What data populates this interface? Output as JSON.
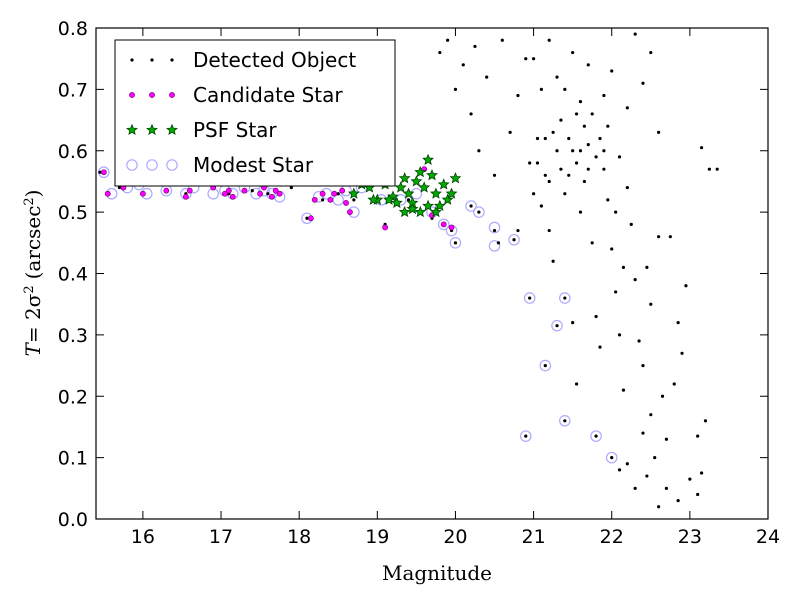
{
  "chart_data": {
    "type": "scatter",
    "xlabel": "Magnitude",
    "ylabel_T": "T",
    "ylabel_eq": "= 2σ",
    "ylabel_sup": "2",
    "ylabel_unit": "(arcsec",
    "ylabel_unit_sup": "2",
    "ylabel_close": ")",
    "xlim": [
      15.4,
      24
    ],
    "ylim": [
      0.0,
      0.8
    ],
    "xticks": [
      "16",
      "17",
      "18",
      "19",
      "20",
      "21",
      "22",
      "23",
      "24"
    ],
    "yticks": [
      "0.0",
      "0.1",
      "0.2",
      "0.3",
      "0.4",
      "0.5",
      "0.6",
      "0.7",
      "0.8"
    ],
    "legend_position": "top-left",
    "grid": false,
    "series": [
      {
        "name": "Detected Object",
        "marker": "dot",
        "color": "#000000",
        "points": [
          [
            15.45,
            0.565
          ],
          [
            15.55,
            0.53
          ],
          [
            15.7,
            0.54
          ],
          [
            15.9,
            0.545
          ],
          [
            16.0,
            0.53
          ],
          [
            16.3,
            0.535
          ],
          [
            16.55,
            0.53
          ],
          [
            16.9,
            0.54
          ],
          [
            17.1,
            0.53
          ],
          [
            17.4,
            0.535
          ],
          [
            17.6,
            0.53
          ],
          [
            17.9,
            0.54
          ],
          [
            18.1,
            0.49
          ],
          [
            18.3,
            0.52
          ],
          [
            18.5,
            0.53
          ],
          [
            18.7,
            0.52
          ],
          [
            18.9,
            0.54
          ],
          [
            19.1,
            0.48
          ],
          [
            19.4,
            0.52
          ],
          [
            19.7,
            0.49
          ],
          [
            19.85,
            0.48
          ],
          [
            19.95,
            0.47
          ],
          [
            20.0,
            0.45
          ],
          [
            20.2,
            0.51
          ],
          [
            20.3,
            0.5
          ],
          [
            20.5,
            0.47
          ],
          [
            20.55,
            0.45
          ],
          [
            20.75,
            0.455
          ],
          [
            20.8,
            0.47
          ],
          [
            20.95,
            0.36
          ],
          [
            20.9,
            0.135
          ],
          [
            21.15,
            0.25
          ],
          [
            21.3,
            0.315
          ],
          [
            21.4,
            0.36
          ],
          [
            21.4,
            0.16
          ],
          [
            21.8,
            0.135
          ],
          [
            22.0,
            0.1
          ],
          [
            22.1,
            0.08
          ],
          [
            22.2,
            0.09
          ],
          [
            22.3,
            0.05
          ],
          [
            22.45,
            0.07
          ],
          [
            22.6,
            0.02
          ],
          [
            22.7,
            0.05
          ],
          [
            22.85,
            0.03
          ],
          [
            23.0,
            0.065
          ],
          [
            23.1,
            0.04
          ],
          [
            23.15,
            0.075
          ],
          [
            23.2,
            0.16
          ],
          [
            23.25,
            0.57
          ],
          [
            23.35,
            0.57
          ],
          [
            23.15,
            0.605
          ],
          [
            23.1,
            0.135
          ],
          [
            22.9,
            0.27
          ],
          [
            22.85,
            0.32
          ],
          [
            22.75,
            0.46
          ],
          [
            22.95,
            0.38
          ],
          [
            22.6,
            0.46
          ],
          [
            22.65,
            0.2
          ],
          [
            22.5,
            0.17
          ],
          [
            22.7,
            0.13
          ],
          [
            22.8,
            0.22
          ],
          [
            22.55,
            0.1
          ],
          [
            22.4,
            0.14
          ],
          [
            20.95,
            0.58
          ],
          [
            21.0,
            0.53
          ],
          [
            21.05,
            0.62
          ],
          [
            21.1,
            0.51
          ],
          [
            21.15,
            0.56
          ],
          [
            21.2,
            0.47
          ],
          [
            21.25,
            0.42
          ],
          [
            21.3,
            0.6
          ],
          [
            21.35,
            0.65
          ],
          [
            21.4,
            0.7
          ],
          [
            21.45,
            0.56
          ],
          [
            21.5,
            0.32
          ],
          [
            21.55,
            0.22
          ],
          [
            21.6,
            0.5
          ],
          [
            21.65,
            0.64
          ],
          [
            21.7,
            0.57
          ],
          [
            21.75,
            0.45
          ],
          [
            21.8,
            0.33
          ],
          [
            21.85,
            0.28
          ],
          [
            21.9,
            0.6
          ],
          [
            21.95,
            0.52
          ],
          [
            22.0,
            0.44
          ],
          [
            22.05,
            0.37
          ],
          [
            22.1,
            0.3
          ],
          [
            22.15,
            0.21
          ],
          [
            22.2,
            0.54
          ],
          [
            22.25,
            0.48
          ],
          [
            22.3,
            0.39
          ],
          [
            22.35,
            0.29
          ],
          [
            22.4,
            0.25
          ],
          [
            22.45,
            0.41
          ],
          [
            22.5,
            0.35
          ],
          [
            21.0,
            0.75
          ],
          [
            21.1,
            0.7
          ],
          [
            21.2,
            0.78
          ],
          [
            21.3,
            0.72
          ],
          [
            21.5,
            0.76
          ],
          [
            21.6,
            0.68
          ],
          [
            21.7,
            0.74
          ],
          [
            21.9,
            0.69
          ],
          [
            22.0,
            0.73
          ],
          [
            22.2,
            0.67
          ],
          [
            22.3,
            0.79
          ],
          [
            22.4,
            0.71
          ],
          [
            22.5,
            0.76
          ],
          [
            22.6,
            0.63
          ],
          [
            20.6,
            0.78
          ],
          [
            20.4,
            0.72
          ],
          [
            20.2,
            0.66
          ],
          [
            20.1,
            0.74
          ],
          [
            20.3,
            0.6
          ],
          [
            20.5,
            0.56
          ],
          [
            20.7,
            0.63
          ],
          [
            20.8,
            0.69
          ],
          [
            20.9,
            0.75
          ],
          [
            19.9,
            0.78
          ],
          [
            20.0,
            0.7
          ],
          [
            20.25,
            0.77
          ],
          [
            19.8,
            0.76
          ],
          [
            21.5,
            0.6
          ],
          [
            21.45,
            0.62
          ],
          [
            21.55,
            0.58
          ],
          [
            21.6,
            0.6
          ],
          [
            21.65,
            0.55
          ],
          [
            21.35,
            0.57
          ],
          [
            21.25,
            0.63
          ],
          [
            21.7,
            0.61
          ],
          [
            21.75,
            0.66
          ],
          [
            21.8,
            0.59
          ],
          [
            21.85,
            0.62
          ],
          [
            21.9,
            0.57
          ],
          [
            21.95,
            0.64
          ],
          [
            21.55,
            0.66
          ],
          [
            21.4,
            0.53
          ],
          [
            21.2,
            0.55
          ],
          [
            21.05,
            0.58
          ],
          [
            22.1,
            0.59
          ],
          [
            22.05,
            0.5
          ],
          [
            22.15,
            0.41
          ],
          [
            21.15,
            0.62
          ]
        ]
      },
      {
        "name": "Candidate Star",
        "marker": "small-circle",
        "color": "#ff00ff",
        "points": [
          [
            15.5,
            0.565
          ],
          [
            15.55,
            0.53
          ],
          [
            15.75,
            0.54
          ],
          [
            16.0,
            0.53
          ],
          [
            16.05,
            0.55
          ],
          [
            16.3,
            0.535
          ],
          [
            16.55,
            0.525
          ],
          [
            16.6,
            0.535
          ],
          [
            16.9,
            0.54
          ],
          [
            17.05,
            0.53
          ],
          [
            17.1,
            0.535
          ],
          [
            17.15,
            0.525
          ],
          [
            17.3,
            0.535
          ],
          [
            17.5,
            0.53
          ],
          [
            17.55,
            0.54
          ],
          [
            17.65,
            0.525
          ],
          [
            17.7,
            0.535
          ],
          [
            17.75,
            0.53
          ],
          [
            18.15,
            0.49
          ],
          [
            18.2,
            0.52
          ],
          [
            18.3,
            0.53
          ],
          [
            18.4,
            0.52
          ],
          [
            18.45,
            0.53
          ],
          [
            18.55,
            0.535
          ],
          [
            18.6,
            0.515
          ],
          [
            18.65,
            0.5
          ],
          [
            19.1,
            0.475
          ],
          [
            19.6,
            0.57
          ],
          [
            19.7,
            0.495
          ],
          [
            19.85,
            0.48
          ],
          [
            19.95,
            0.475
          ]
        ]
      },
      {
        "name": "PSF Star",
        "marker": "star",
        "color": "#00aa00",
        "points": [
          [
            18.7,
            0.53
          ],
          [
            18.8,
            0.545
          ],
          [
            18.9,
            0.54
          ],
          [
            19.0,
            0.52
          ],
          [
            19.1,
            0.545
          ],
          [
            19.2,
            0.525
          ],
          [
            19.3,
            0.54
          ],
          [
            19.35,
            0.555
          ],
          [
            19.4,
            0.53
          ],
          [
            19.45,
            0.515
          ],
          [
            19.5,
            0.55
          ],
          [
            19.55,
            0.565
          ],
          [
            19.6,
            0.54
          ],
          [
            19.65,
            0.585
          ],
          [
            19.7,
            0.56
          ],
          [
            19.75,
            0.53
          ],
          [
            19.8,
            0.51
          ],
          [
            19.85,
            0.545
          ],
          [
            19.9,
            0.52
          ],
          [
            19.95,
            0.53
          ],
          [
            20.0,
            0.555
          ],
          [
            19.45,
            0.505
          ],
          [
            19.55,
            0.5
          ],
          [
            19.65,
            0.51
          ],
          [
            19.75,
            0.5
          ],
          [
            19.25,
            0.515
          ],
          [
            19.15,
            0.52
          ],
          [
            18.95,
            0.52
          ],
          [
            19.35,
            0.5
          ]
        ]
      },
      {
        "name": "Modest Star",
        "marker": "open-circle",
        "color": "#aaaaff",
        "points": [
          [
            15.5,
            0.565
          ],
          [
            15.6,
            0.53
          ],
          [
            15.8,
            0.54
          ],
          [
            15.95,
            0.545
          ],
          [
            16.05,
            0.53
          ],
          [
            16.3,
            0.535
          ],
          [
            16.55,
            0.53
          ],
          [
            16.65,
            0.54
          ],
          [
            16.9,
            0.53
          ],
          [
            17.05,
            0.535
          ],
          [
            17.15,
            0.53
          ],
          [
            17.3,
            0.54
          ],
          [
            17.45,
            0.53
          ],
          [
            17.55,
            0.535
          ],
          [
            17.65,
            0.53
          ],
          [
            17.75,
            0.525
          ],
          [
            18.1,
            0.49
          ],
          [
            18.25,
            0.525
          ],
          [
            18.35,
            0.53
          ],
          [
            18.5,
            0.52
          ],
          [
            18.6,
            0.535
          ],
          [
            18.7,
            0.5
          ],
          [
            18.8,
            0.54
          ],
          [
            19.05,
            0.52
          ],
          [
            19.3,
            0.52
          ],
          [
            19.5,
            0.53
          ],
          [
            19.7,
            0.5
          ],
          [
            19.85,
            0.48
          ],
          [
            19.95,
            0.47
          ],
          [
            20.0,
            0.45
          ],
          [
            20.2,
            0.51
          ],
          [
            20.3,
            0.5
          ],
          [
            20.5,
            0.475
          ],
          [
            20.5,
            0.445
          ],
          [
            20.75,
            0.455
          ],
          [
            20.95,
            0.36
          ],
          [
            20.9,
            0.135
          ],
          [
            21.15,
            0.25
          ],
          [
            21.3,
            0.315
          ],
          [
            21.4,
            0.36
          ],
          [
            21.4,
            0.16
          ],
          [
            21.8,
            0.135
          ],
          [
            22.0,
            0.1
          ]
        ]
      }
    ]
  }
}
